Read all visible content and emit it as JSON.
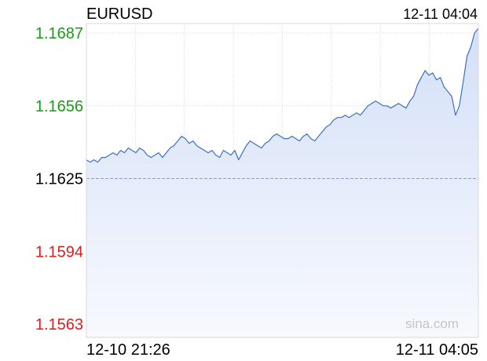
{
  "header": {
    "symbol": "EURUSD",
    "timestamp": "12-11 04:04"
  },
  "watermark": "sina.com",
  "colors": {
    "line": "#3c6fc8",
    "fill_top": "#d4e0f8",
    "fill_bottom": "#f7f9fe",
    "up": "#1a9a1a",
    "down": "#e01b1b",
    "neutral": "#000000",
    "grid": "#d8d8d8",
    "baseline": "#9a9aae"
  },
  "chart_data": {
    "type": "area",
    "title": "EURUSD",
    "xlabel": "",
    "ylabel": "",
    "ylim": [
      1.1563,
      1.1689
    ],
    "previous_close": 1.1625,
    "yticks": [
      {
        "value": 1.1687,
        "label": "1.1687",
        "tone": "up"
      },
      {
        "value": 1.1656,
        "label": "1.1656",
        "tone": "up"
      },
      {
        "value": 1.1625,
        "label": "1.1625",
        "tone": "neutral"
      },
      {
        "value": 1.1594,
        "label": "1.1594",
        "tone": "down"
      },
      {
        "value": 1.1563,
        "label": "1.1563",
        "tone": "down"
      }
    ],
    "xticks": [
      {
        "label": "12-10 21:26",
        "align": "start"
      },
      {
        "label": "12-11 04:05",
        "align": "end"
      }
    ],
    "x_range": [
      "12-10 21:26",
      "12-11 04:05"
    ],
    "grid": true,
    "series": [
      {
        "values": [
          1.1633,
          1.1632,
          1.1633,
          1.1632,
          1.1634,
          1.1634,
          1.1635,
          1.1636,
          1.1635,
          1.1637,
          1.1636,
          1.1638,
          1.1637,
          1.1636,
          1.1638,
          1.1637,
          1.1635,
          1.1634,
          1.1635,
          1.1636,
          1.1634,
          1.1636,
          1.1638,
          1.1639,
          1.1641,
          1.1643,
          1.1642,
          1.164,
          1.1641,
          1.1639,
          1.1638,
          1.1637,
          1.1636,
          1.1637,
          1.1635,
          1.1634,
          1.1637,
          1.1636,
          1.1635,
          1.1637,
          1.1633,
          1.1636,
          1.1639,
          1.1641,
          1.164,
          1.1639,
          1.1638,
          1.164,
          1.1641,
          1.1643,
          1.1644,
          1.1643,
          1.1642,
          1.1642,
          1.1643,
          1.1642,
          1.1641,
          1.1643,
          1.1644,
          1.1642,
          1.1641,
          1.1643,
          1.1645,
          1.1647,
          1.1648,
          1.165,
          1.1651,
          1.1651,
          1.1652,
          1.1651,
          1.1652,
          1.1653,
          1.1652,
          1.1654,
          1.1656,
          1.1657,
          1.1658,
          1.1657,
          1.1656,
          1.1656,
          1.1655,
          1.1656,
          1.1657,
          1.1656,
          1.1655,
          1.1658,
          1.166,
          1.1665,
          1.1668,
          1.1671,
          1.1669,
          1.167,
          1.1667,
          1.1668,
          1.1664,
          1.1662,
          1.166,
          1.1652,
          1.1656,
          1.1666,
          1.1677,
          1.1681,
          1.1687,
          1.1689
        ]
      }
    ]
  }
}
